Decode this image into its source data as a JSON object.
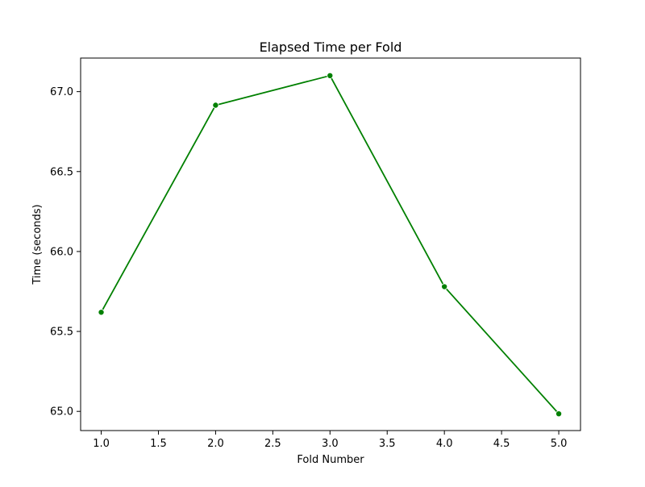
{
  "chart_data": {
    "type": "line",
    "title": "Elapsed Time per Fold",
    "xlabel": "Fold Number",
    "ylabel": "Time (seconds)",
    "x": [
      1,
      2,
      3,
      4,
      5
    ],
    "series": [
      {
        "values": [
          65.62,
          66.915,
          67.1,
          65.78,
          64.985
        ],
        "color": "#008000",
        "marker": "circle"
      }
    ],
    "xlim": [
      0.82,
      5.19
    ],
    "ylim": [
      64.88,
      67.21
    ],
    "xticks": [
      1.0,
      1.5,
      2.0,
      2.5,
      3.0,
      3.5,
      4.0,
      4.5,
      5.0
    ],
    "xtick_labels": [
      "1.0",
      "1.5",
      "2.0",
      "2.5",
      "3.0",
      "3.5",
      "4.0",
      "4.5",
      "5.0"
    ],
    "yticks": [
      65.0,
      65.5,
      66.0,
      66.5,
      67.0
    ],
    "ytick_labels": [
      "65.0",
      "65.5",
      "66.0",
      "66.5",
      "67.0"
    ],
    "grid": false,
    "legend": "none"
  }
}
